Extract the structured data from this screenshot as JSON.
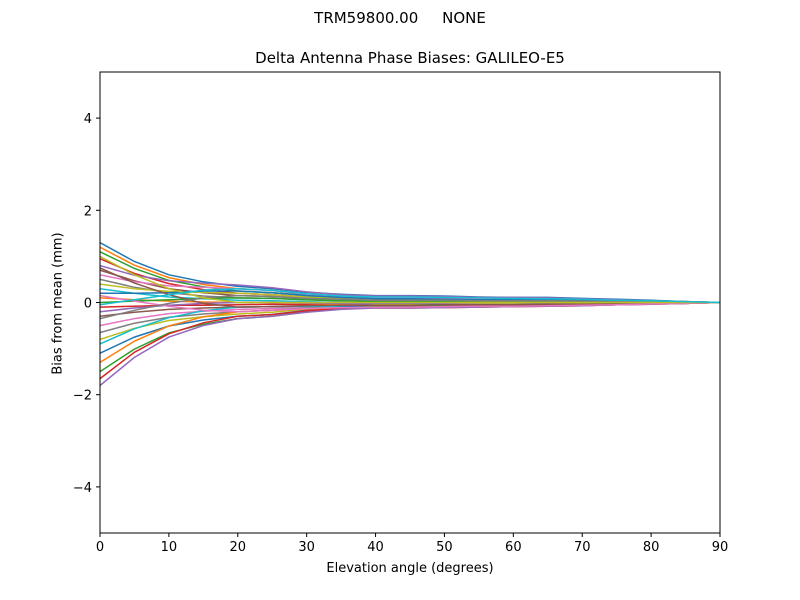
{
  "chart_data": {
    "type": "line",
    "suptitle": "TRM59800.00     NONE",
    "title": "Delta Antenna Phase Biases: GALILEO-E5",
    "xlabel": "Elevation angle (degrees)",
    "ylabel": "Bias from mean (mm)",
    "xlim": [
      0,
      90
    ],
    "ylim": [
      -5,
      5
    ],
    "xticks": [
      0,
      10,
      20,
      30,
      40,
      50,
      60,
      70,
      80,
      90
    ],
    "yticks": [
      -4,
      -2,
      0,
      2,
      4
    ],
    "ytick_labels": [
      "−4",
      "−2",
      "0",
      "2",
      "4"
    ],
    "grid": false,
    "colors": [
      "#1f77b4",
      "#ff7f0e",
      "#2ca02c",
      "#d62728",
      "#9467bd",
      "#8c564b",
      "#e377c2",
      "#7f7f7f",
      "#bcbd22",
      "#17becf"
    ],
    "x": [
      0,
      5,
      10,
      15,
      20,
      25,
      30,
      35,
      40,
      45,
      50,
      55,
      60,
      65,
      70,
      75,
      80,
      85,
      90
    ],
    "series": [
      {
        "values": [
          1.3,
          0.89,
          0.6,
          0.45,
          0.35,
          0.3,
          0.22,
          0.18,
          0.15,
          0.15,
          0.14,
          0.12,
          0.11,
          0.11,
          0.09,
          0.07,
          0.05,
          0.02,
          0
        ]
      },
      {
        "values": [
          1.2,
          0.81,
          0.54,
          0.39,
          0.3,
          0.26,
          0.18,
          0.13,
          0.1,
          0.1,
          0.09,
          0.08,
          0.08,
          0.07,
          0.06,
          0.05,
          0.03,
          0.02,
          0
        ]
      },
      {
        "values": [
          1.1,
          0.74,
          0.48,
          0.34,
          0.25,
          0.21,
          0.16,
          0.13,
          0.12,
          0.12,
          0.11,
          0.1,
          0.09,
          0.08,
          0.07,
          0.05,
          0.04,
          0.02,
          0
        ]
      },
      {
        "values": [
          0.95,
          0.63,
          0.41,
          0.28,
          0.2,
          0.17,
          0.12,
          0.1,
          0.08,
          0.08,
          0.07,
          0.06,
          0.06,
          0.06,
          0.05,
          0.04,
          0.02,
          0.01,
          0
        ]
      },
      {
        "values": [
          0.8,
          0.59,
          0.47,
          0.42,
          0.38,
          0.32,
          0.23,
          0.17,
          0.14,
          0.14,
          0.13,
          0.11,
          0.11,
          0.1,
          0.08,
          0.06,
          0.04,
          0.02,
          0
        ]
      },
      {
        "values": [
          0.7,
          0.47,
          0.3,
          0.21,
          0.15,
          0.13,
          0.09,
          0.07,
          0.05,
          0.05,
          0.05,
          0.04,
          0.04,
          0.04,
          0.03,
          0.02,
          0.02,
          0.01,
          0
        ]
      },
      {
        "values": [
          0.6,
          0.45,
          0.36,
          0.33,
          0.3,
          0.26,
          0.18,
          0.13,
          0.1,
          0.1,
          0.09,
          0.08,
          0.08,
          0.07,
          0.06,
          0.05,
          0.03,
          0.02,
          0
        ]
      },
      {
        "values": [
          0.5,
          0.33,
          0.21,
          0.14,
          0.1,
          0.09,
          0.06,
          0.04,
          0.03,
          0.03,
          0.03,
          0.02,
          0.02,
          0.02,
          0.02,
          0.01,
          0.01,
          0,
          0
        ]
      },
      {
        "values": [
          0.4,
          0.3,
          0.24,
          0.22,
          0.2,
          0.17,
          0.12,
          0.08,
          0.06,
          0.06,
          0.05,
          0.05,
          0.05,
          0.04,
          0.04,
          0.03,
          0.02,
          0.01,
          0
        ]
      },
      {
        "values": [
          0.3,
          0.2,
          0.12,
          0.08,
          0.05,
          0.04,
          0.02,
          0,
          -0.02,
          -0.02,
          -0.02,
          -0.02,
          -0.02,
          -0.01,
          -0.01,
          -0.01,
          -0.01,
          0,
          0
        ]
      },
      {
        "values": [
          0.2,
          0.2,
          0.21,
          0.25,
          0.25,
          0.21,
          0.15,
          0.11,
          0.08,
          0.08,
          0.07,
          0.06,
          0.06,
          0.06,
          0.05,
          0.04,
          0.02,
          0.01,
          0
        ]
      },
      {
        "values": [
          0.1,
          0.06,
          0.03,
          0.01,
          0,
          0,
          -0.02,
          -0.04,
          -0.05,
          -0.05,
          -0.05,
          -0.04,
          -0.04,
          -0.04,
          -0.03,
          -0.02,
          -0.02,
          -0.01,
          0
        ]
      },
      {
        "values": [
          0,
          0.03,
          0.06,
          0.09,
          0.1,
          0.09,
          0.06,
          0.04,
          0.02,
          0.02,
          0.02,
          0.02,
          0.02,
          0.01,
          0.01,
          0.01,
          0.01,
          0,
          0
        ]
      },
      {
        "values": [
          -0.1,
          -0.08,
          -0.06,
          -0.06,
          -0.05,
          -0.04,
          -0.05,
          -0.07,
          -0.08,
          -0.08,
          -0.07,
          -0.06,
          -0.06,
          -0.06,
          -0.05,
          -0.04,
          -0.02,
          -0.01,
          0
        ]
      },
      {
        "values": [
          -0.2,
          -0.12,
          -0.06,
          -0.02,
          0,
          0,
          -0.01,
          -0.02,
          -0.03,
          -0.03,
          -0.03,
          -0.02,
          -0.02,
          -0.02,
          -0.02,
          -0.01,
          -0.01,
          0,
          0
        ]
      },
      {
        "values": [
          -0.3,
          -0.21,
          -0.15,
          -0.12,
          -0.1,
          -0.09,
          -0.08,
          -0.09,
          -0.1,
          -0.1,
          -0.09,
          -0.08,
          -0.08,
          -0.07,
          -0.06,
          -0.05,
          -0.03,
          -0.02,
          0
        ]
      },
      {
        "values": [
          -0.5,
          -0.35,
          -0.24,
          -0.19,
          -0.15,
          -0.13,
          -0.11,
          -0.11,
          -0.12,
          -0.12,
          -0.11,
          -0.1,
          -0.09,
          -0.08,
          -0.07,
          -0.05,
          -0.04,
          -0.02,
          0
        ]
      },
      {
        "values": [
          -0.65,
          -0.45,
          -0.32,
          -0.25,
          -0.2,
          -0.17,
          -0.12,
          -0.1,
          -0.08,
          -0.08,
          -0.07,
          -0.06,
          -0.06,
          -0.06,
          -0.05,
          -0.04,
          -0.02,
          -0.01,
          0
        ]
      },
      {
        "values": [
          -0.8,
          -0.56,
          -0.39,
          -0.31,
          -0.25,
          -0.21,
          -0.14,
          -0.09,
          -0.05,
          -0.05,
          -0.05,
          -0.04,
          -0.04,
          -0.04,
          -0.03,
          -0.02,
          -0.02,
          -0.01,
          0
        ]
      },
      {
        "values": [
          -0.9,
          -0.57,
          -0.33,
          -0.18,
          -0.1,
          -0.09,
          -0.08,
          -0.09,
          -0.1,
          -0.1,
          -0.09,
          -0.08,
          -0.08,
          -0.07,
          -0.06,
          -0.05,
          -0.03,
          -0.02,
          0
        ]
      },
      {
        "values": [
          -1.1,
          -0.75,
          -0.51,
          -0.38,
          -0.3,
          -0.26,
          -0.17,
          -0.1,
          -0.06,
          -0.06,
          -0.05,
          -0.05,
          -0.05,
          -0.04,
          -0.04,
          -0.03,
          -0.02,
          -0.01,
          0
        ]
      },
      {
        "values": [
          -1.3,
          -0.84,
          -0.51,
          -0.31,
          -0.2,
          -0.17,
          -0.14,
          -0.12,
          -0.12,
          -0.12,
          -0.11,
          -0.1,
          -0.09,
          -0.08,
          -0.07,
          -0.05,
          -0.04,
          -0.02,
          0
        ]
      },
      {
        "values": [
          -1.5,
          -1.01,
          -0.66,
          -0.47,
          -0.35,
          -0.3,
          -0.2,
          -0.13,
          -0.08,
          -0.08,
          -0.07,
          -0.06,
          -0.06,
          -0.06,
          -0.05,
          -0.04,
          -0.02,
          -0.01,
          0
        ]
      },
      {
        "values": [
          -1.65,
          -1.08,
          -0.68,
          -0.44,
          -0.3,
          -0.26,
          -0.18,
          -0.13,
          -0.1,
          -0.1,
          -0.09,
          -0.08,
          -0.08,
          -0.07,
          -0.06,
          -0.05,
          -0.03,
          -0.02,
          0
        ]
      },
      {
        "values": [
          -1.8,
          -1.19,
          -0.75,
          -0.5,
          -0.35,
          -0.3,
          -0.21,
          -0.15,
          -0.12,
          -0.12,
          -0.11,
          -0.1,
          -0.09,
          -0.08,
          -0.07,
          -0.05,
          -0.04,
          -0.02,
          0
        ]
      },
      {
        "values": [
          0.75,
          0.42,
          0.17,
          -0.02,
          -0.1,
          -0.09,
          -0.07,
          -0.06,
          -0.06,
          -0.06,
          -0.05,
          -0.05,
          -0.05,
          -0.04,
          -0.04,
          -0.03,
          -0.02,
          -0.01,
          0
        ]
      },
      {
        "values": [
          0.15,
          0.03,
          -0.08,
          -0.17,
          -0.2,
          -0.17,
          -0.13,
          -0.11,
          -0.1,
          -0.1,
          -0.09,
          -0.08,
          -0.08,
          -0.07,
          -0.06,
          -0.05,
          -0.03,
          -0.02,
          0
        ]
      },
      {
        "values": [
          -0.35,
          -0.17,
          -0.02,
          0.1,
          0.15,
          0.13,
          0.09,
          0.07,
          0.05,
          0.05,
          0.05,
          0.04,
          0.04,
          0.04,
          0.03,
          0.02,
          0.02,
          0.01,
          0
        ]
      },
      {
        "values": [
          1.0,
          0.6,
          0.3,
          0.1,
          0,
          0,
          0,
          0,
          0,
          0,
          0,
          0,
          0,
          0,
          0,
          0,
          0,
          0,
          0
        ]
      },
      {
        "values": [
          -0.05,
          0.06,
          0.17,
          0.27,
          0.3,
          0.26,
          0.19,
          0.14,
          0.12,
          0.12,
          0.11,
          0.1,
          0.09,
          0.08,
          0.07,
          0.05,
          0.04,
          0.02,
          0
        ]
      }
    ]
  }
}
